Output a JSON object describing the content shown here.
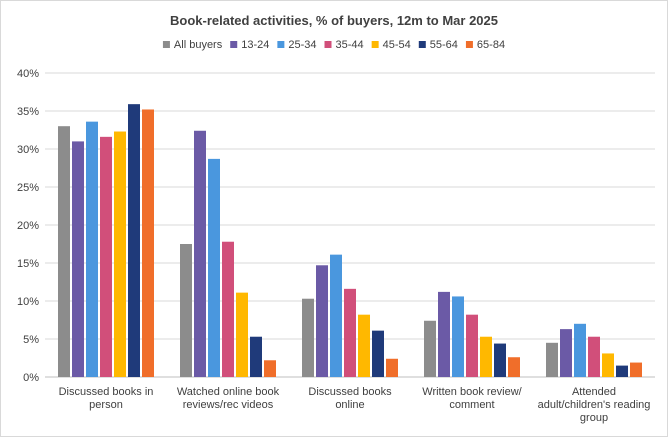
{
  "chart_data": {
    "type": "bar",
    "title": "Book-related activities, % of buyers, 12m to Mar 2025",
    "xlabel": "",
    "ylabel": "",
    "ylim": [
      0,
      40
    ],
    "yticks": [
      "0%",
      "5%",
      "10%",
      "15%",
      "20%",
      "25%",
      "30%",
      "35%",
      "40%"
    ],
    "grid": true,
    "legend_position": "top",
    "categories": [
      [
        "Discussed books in",
        "person"
      ],
      [
        "Watched online book",
        "reviews/rec videos"
      ],
      [
        "Discussed books",
        "online"
      ],
      [
        "Written book review/",
        "comment"
      ],
      [
        "Attended",
        "adult/children's reading",
        "group"
      ]
    ],
    "series": [
      {
        "name": "All buyers",
        "color": "#8c8c8c",
        "values": [
          33.0,
          17.5,
          10.3,
          7.4,
          4.5
        ]
      },
      {
        "name": "13-24",
        "color": "#6b5aa6",
        "values": [
          31.0,
          32.4,
          14.7,
          11.2,
          6.3
        ]
      },
      {
        "name": "25-34",
        "color": "#4a97de",
        "values": [
          33.6,
          28.7,
          16.1,
          10.6,
          7.0
        ]
      },
      {
        "name": "35-44",
        "color": "#d14f7a",
        "values": [
          31.6,
          17.8,
          11.6,
          8.2,
          5.3
        ]
      },
      {
        "name": "45-54",
        "color": "#ffb800",
        "values": [
          32.3,
          11.1,
          8.2,
          5.3,
          3.1
        ]
      },
      {
        "name": "55-64",
        "color": "#1f3a7a",
        "values": [
          35.9,
          5.3,
          6.1,
          4.4,
          1.5
        ]
      },
      {
        "name": "65-84",
        "color": "#f06e2a",
        "values": [
          35.2,
          2.2,
          2.4,
          2.6,
          1.9
        ]
      }
    ]
  }
}
